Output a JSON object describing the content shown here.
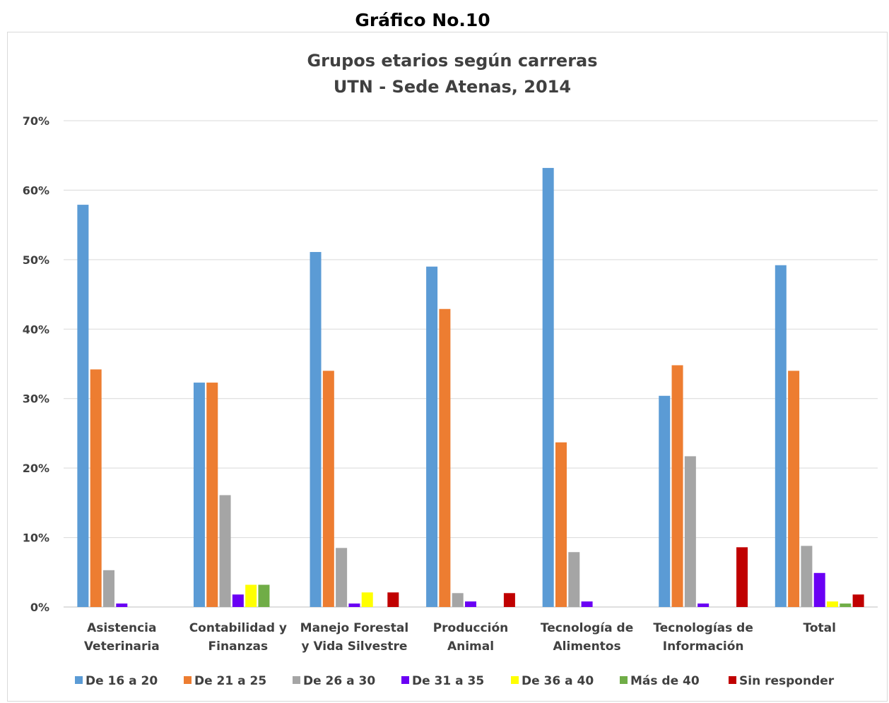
{
  "page": {
    "heading": "Gráfico No.10"
  },
  "chart_data": {
    "type": "bar",
    "title": "Grupos etarios según carreras",
    "subtitle": "UTN - Sede Atenas, 2014",
    "categories": [
      [
        "Asistencia",
        "Veterinaria"
      ],
      [
        "Contabilidad y",
        "Finanzas"
      ],
      [
        "Manejo Forestal",
        "y Vida Silvestre"
      ],
      [
        "Producción",
        "Animal"
      ],
      [
        "Tecnología de",
        "Alimentos"
      ],
      [
        "Tecnologías de",
        "Información"
      ],
      [
        "Total"
      ]
    ],
    "yticks": [
      "0%",
      "10%",
      "20%",
      "30%",
      "40%",
      "50%",
      "60%",
      "70%"
    ],
    "ylim": [
      0,
      70
    ],
    "grid": true,
    "legend_position": "bottom",
    "series": [
      {
        "name": "De 16 a 20",
        "color": "#5b9bd5",
        "values": [
          57.9,
          32.3,
          51.1,
          49.0,
          63.2,
          30.4,
          49.2
        ]
      },
      {
        "name": "De 21 a 25",
        "color": "#ed7d31",
        "values": [
          34.2,
          32.3,
          34.0,
          42.9,
          23.7,
          34.8,
          34.0
        ]
      },
      {
        "name": "De 26 a 30",
        "color": "#a5a5a5",
        "values": [
          5.3,
          16.1,
          8.5,
          2.0,
          7.9,
          21.7,
          8.8
        ]
      },
      {
        "name": "De 31 a 35",
        "color": "#6a00f4",
        "values": [
          0.5,
          1.8,
          0.5,
          0.8,
          0.8,
          0.5,
          4.9
        ]
      },
      {
        "name": "De 36 a 40",
        "color": "#ffff00",
        "values": [
          0,
          3.2,
          2.1,
          0,
          0,
          0,
          0.8
        ]
      },
      {
        "name": "Más de 40",
        "color": "#70ad47",
        "values": [
          0,
          3.2,
          0,
          0,
          0,
          0,
          0.5
        ]
      },
      {
        "name": "Sin responder",
        "color": "#c00000",
        "values": [
          0,
          0,
          2.1,
          2.0,
          0,
          8.6,
          1.8
        ]
      }
    ]
  }
}
